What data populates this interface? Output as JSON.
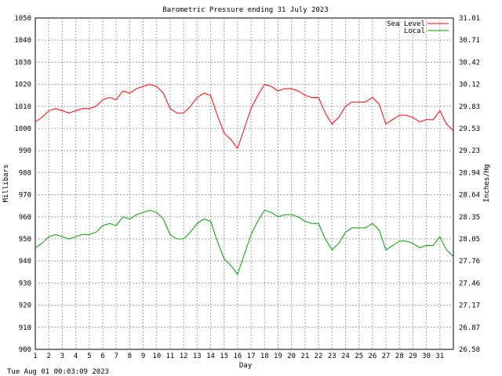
{
  "chart_data": {
    "type": "line",
    "title": "Barometric Pressure ending 31 July 2023",
    "xlabel": "Day",
    "ylabel": "Millibars",
    "y2label": "Inches/Hg",
    "xlim": [
      1,
      32
    ],
    "ylim": [
      900,
      1050
    ],
    "x_ticks": [
      "1",
      "2",
      "3",
      "4",
      "5",
      "6",
      "7",
      "8",
      "9",
      "10",
      "11",
      "12",
      "13",
      "14",
      "15",
      "16",
      "17",
      "18",
      "19",
      "20",
      "21",
      "22",
      "23",
      "24",
      "25",
      "26",
      "27",
      "28",
      "29",
      "30",
      "31"
    ],
    "y_ticks": [
      "1050",
      "1040",
      "1030",
      "1020",
      "1010",
      "1000",
      "990",
      "980",
      "970",
      "960",
      "950",
      "940",
      "930",
      "920",
      "910",
      "900"
    ],
    "y2_ticks": [
      "31.01",
      "30.71",
      "30.42",
      "30.12",
      "29.83",
      "29.53",
      "29.23",
      "28.94",
      "28.64",
      "28.35",
      "28.05",
      "27.76",
      "27.46",
      "27.17",
      "26.87",
      "26.58"
    ],
    "grid": true,
    "legend_position": "top-right",
    "footer": "Tue Aug 01 00:03:09 2023",
    "series": [
      {
        "name": "Sea Level",
        "color": "#ff0000",
        "x": [
          1,
          1.5,
          2,
          2.5,
          3,
          3.5,
          4,
          4.5,
          5,
          5.5,
          6,
          6.5,
          7,
          7.5,
          8,
          8.5,
          9,
          9.5,
          10,
          10.5,
          11,
          11.5,
          12,
          12.5,
          13,
          13.5,
          14,
          14.5,
          15,
          15.5,
          16,
          16.5,
          17,
          17.5,
          18,
          18.5,
          19,
          19.5,
          20,
          20.5,
          21,
          21.5,
          22,
          22.5,
          23,
          23.5,
          24,
          24.5,
          25,
          25.5,
          26,
          26.5,
          27,
          27.5,
          28,
          28.5,
          29,
          29.5,
          30,
          30.5,
          31,
          31.5,
          32
        ],
        "values": [
          1003,
          1005,
          1008,
          1009,
          1008,
          1007,
          1008,
          1009,
          1009,
          1010,
          1013,
          1014,
          1013,
          1017,
          1016,
          1018,
          1019,
          1020,
          1019,
          1016,
          1009,
          1007,
          1007,
          1010,
          1014,
          1016,
          1015,
          1006,
          998,
          995,
          991,
          1000,
          1009,
          1015,
          1020,
          1019,
          1017,
          1018,
          1018,
          1017,
          1015,
          1014,
          1014,
          1007,
          1002,
          1005,
          1010,
          1012,
          1012,
          1012,
          1014,
          1011,
          1002,
          1004,
          1006,
          1006,
          1005,
          1003,
          1004,
          1004,
          1008,
          1002,
          999
        ]
      },
      {
        "name": "Local",
        "color": "#00a000",
        "x": [
          1,
          1.5,
          2,
          2.5,
          3,
          3.5,
          4,
          4.5,
          5,
          5.5,
          6,
          6.5,
          7,
          7.5,
          8,
          8.5,
          9,
          9.5,
          10,
          10.5,
          11,
          11.5,
          12,
          12.5,
          13,
          13.5,
          14,
          14.5,
          15,
          15.5,
          16,
          16.5,
          17,
          17.5,
          18,
          18.5,
          19,
          19.5,
          20,
          20.5,
          21,
          21.5,
          22,
          22.5,
          23,
          23.5,
          24,
          24.5,
          25,
          25.5,
          26,
          26.5,
          27,
          27.5,
          28,
          28.5,
          29,
          29.5,
          30,
          30.5,
          31,
          31.5,
          32
        ],
        "values": [
          946,
          948,
          951,
          952,
          951,
          950,
          951,
          952,
          952,
          953,
          956,
          957,
          956,
          960,
          959,
          961,
          962,
          963,
          962,
          959,
          952,
          950,
          950,
          953,
          957,
          959,
          958,
          949,
          941,
          938,
          934,
          943,
          952,
          958,
          963,
          962,
          960,
          961,
          961,
          960,
          958,
          957,
          957,
          950,
          945,
          948,
          953,
          955,
          955,
          955,
          957,
          954,
          945,
          947,
          949,
          949,
          948,
          946,
          947,
          947,
          951,
          945,
          942
        ]
      }
    ]
  }
}
